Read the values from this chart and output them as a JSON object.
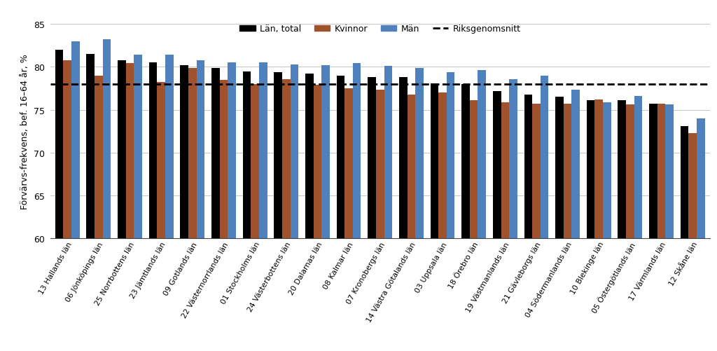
{
  "categories": [
    "13 Hallands län",
    "06 Jönköpings län",
    "25 Norrbottens län",
    "23 Jämtlands län",
    "09 Gotlands län",
    "22 Västernorrlands län",
    "01 Stockholms län",
    "24 Västerbottens län",
    "20 Dalarnas län",
    "08 Kalmar län",
    "07 Kronobergs län",
    "14 Västra Götalands län",
    "03 Uppsala län",
    "18 Örebro län",
    "19 Västmanlands län",
    "21 Gävleborgs län",
    "04 Södermanlands län",
    "10 Blekinge län",
    "05 Östergötlands län",
    "17 Värmlands län",
    "12 Skåne län"
  ],
  "total": [
    82.0,
    81.5,
    80.8,
    80.5,
    80.2,
    79.9,
    79.5,
    79.4,
    79.2,
    79.0,
    78.8,
    78.8,
    78.1,
    78.0,
    77.2,
    76.8,
    76.5,
    76.1,
    76.1,
    75.7,
    73.1
  ],
  "kvinnor": [
    80.8,
    79.0,
    80.4,
    78.2,
    79.9,
    78.5,
    78.0,
    78.6,
    77.9,
    77.5,
    77.3,
    76.8,
    77.0,
    76.1,
    75.9,
    75.7,
    75.7,
    76.2,
    75.6,
    75.7,
    72.3
  ],
  "man": [
    83.0,
    83.2,
    81.4,
    81.4,
    80.8,
    80.5,
    80.5,
    80.3,
    80.2,
    80.4,
    80.1,
    79.9,
    79.4,
    79.6,
    78.6,
    79.0,
    77.3,
    75.9,
    76.6,
    75.6,
    74.0
  ],
  "riksgenomsnitt": 78.0,
  "ylabel": "Förvärvs­frekvens, bef. 16–64 år, %",
  "ylim_min": 60,
  "ylim_max": 85,
  "yticks": [
    60,
    65,
    70,
    75,
    80,
    85
  ],
  "bar_color_total": "#000000",
  "bar_color_kvinnor": "#a0522d",
  "bar_color_man": "#4f81bd",
  "riksgenomsnitt_color": "#000000",
  "legend_labels": [
    "Län, total",
    "Kvinnor",
    "Män",
    "Riksgenomsnitt"
  ],
  "background_color": "#ffffff"
}
